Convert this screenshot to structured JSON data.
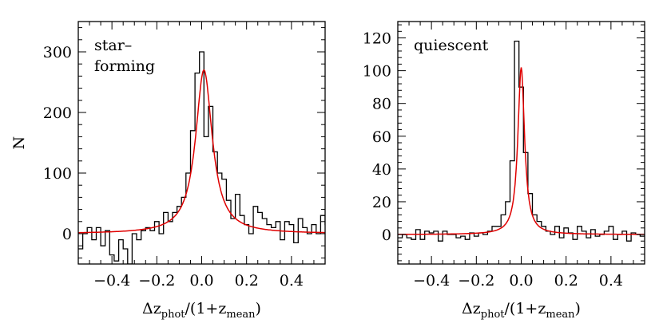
{
  "chart_data": [
    {
      "type": "histogram",
      "panel_label_lines": [
        "star–",
        "forming"
      ],
      "xlabel": {
        "prefix": "Δz",
        "sub1": "phot",
        "mid": "/(1+z",
        "sub2": "mean",
        "suffix": ")"
      },
      "ylabel": "N",
      "xlim": [
        -0.55,
        0.55
      ],
      "ylim": [
        -50,
        350
      ],
      "xticks": [
        -0.4,
        -0.2,
        0.0,
        0.2,
        0.4
      ],
      "xtick_labels": [
        "−0.4",
        "−0.2",
        "0.0",
        "0.2",
        "0.4"
      ],
      "yticks": [
        0,
        100,
        200,
        300
      ],
      "ytick_labels": [
        "0",
        "100",
        "200",
        "300"
      ],
      "bin_width": 0.02,
      "bin_start": -0.55,
      "counts": [
        -25,
        0,
        10,
        -10,
        10,
        -20,
        5,
        -35,
        -45,
        -10,
        -25,
        -50,
        0,
        -10,
        5,
        10,
        5,
        20,
        0,
        35,
        20,
        35,
        45,
        60,
        100,
        170,
        265,
        300,
        160,
        210,
        135,
        100,
        90,
        55,
        25,
        65,
        30,
        15,
        0,
        45,
        35,
        25,
        15,
        10,
        20,
        -10,
        20,
        15,
        -15,
        25,
        10,
        0,
        15,
        0,
        30,
        15
      ],
      "fit": {
        "model": "lorentzian",
        "amplitude": 270,
        "center": 0.01,
        "gamma": 0.045
      }
    },
    {
      "type": "histogram",
      "panel_label_lines": [
        "quiescent"
      ],
      "xlabel": {
        "prefix": "Δz",
        "sub1": "phot",
        "mid": "/(1+z",
        "sub2": "mean",
        "suffix": ")"
      },
      "ylabel": "",
      "xlim": [
        -0.55,
        0.55
      ],
      "ylim": [
        -18,
        130
      ],
      "xticks": [
        -0.4,
        -0.2,
        0.0,
        0.2,
        0.4
      ],
      "xtick_labels": [
        "−0.4",
        "−0.2",
        "0.0",
        "0.2",
        "0.4"
      ],
      "yticks": [
        0,
        20,
        40,
        60,
        80,
        100,
        120
      ],
      "ytick_labels": [
        "0",
        "20",
        "40",
        "60",
        "80",
        "100",
        "120"
      ],
      "bin_width": 0.02,
      "bin_start": -0.55,
      "counts": [
        -2,
        0,
        -2,
        -3,
        3,
        -3,
        2,
        1,
        2,
        -4,
        2,
        0,
        0,
        -2,
        -1,
        -3,
        1,
        -1,
        1,
        0,
        2,
        5,
        5,
        12,
        20,
        45,
        118,
        90,
        50,
        25,
        12,
        8,
        5,
        2,
        0,
        5,
        -2,
        4,
        1,
        -3,
        5,
        2,
        -2,
        3,
        -1,
        0,
        2,
        5,
        -3,
        0,
        2,
        -4,
        1,
        0,
        -1,
        0
      ],
      "fit": {
        "model": "lorentzian",
        "amplitude": 102,
        "center": 0.0,
        "gamma": 0.018
      }
    }
  ]
}
